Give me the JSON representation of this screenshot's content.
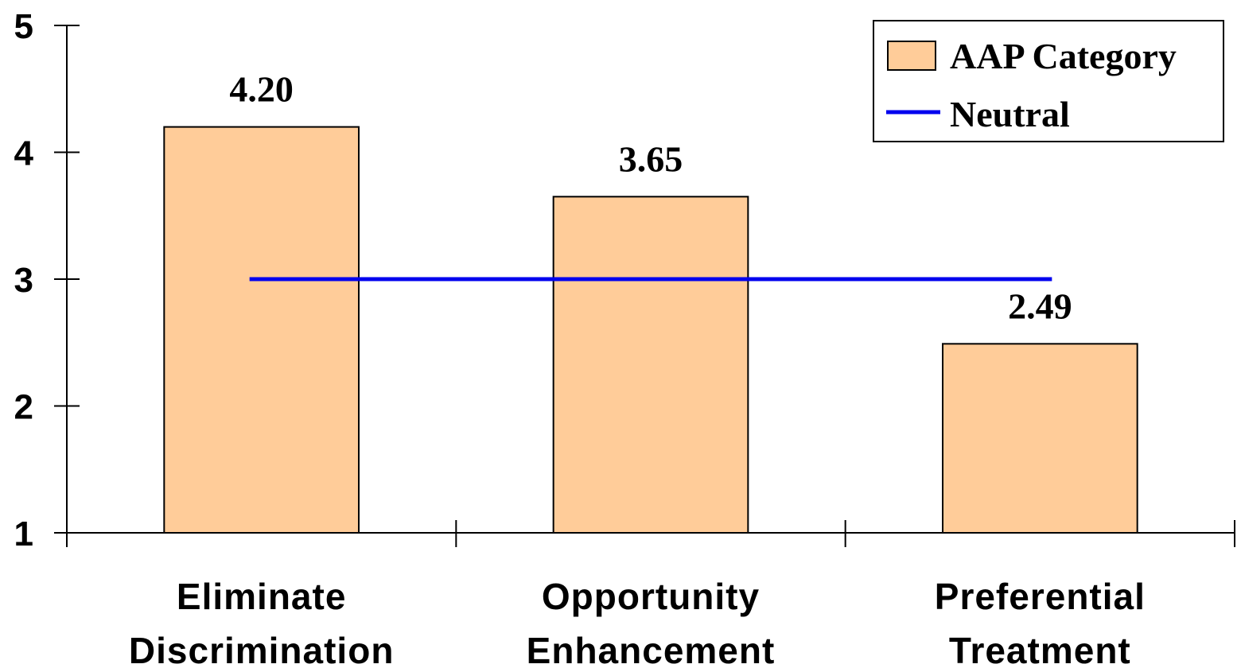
{
  "chart_data": {
    "type": "bar",
    "categories": [
      [
        "Eliminate",
        "Discrimination"
      ],
      [
        "Opportunity",
        "Enhancement"
      ],
      [
        "Preferential",
        "Treatment"
      ]
    ],
    "series": [
      {
        "name": "AAP Category",
        "values": [
          4.2,
          3.65,
          2.49
        ],
        "value_labels": [
          "4.20",
          "3.65",
          "2.49"
        ],
        "color": "#FFCC99"
      }
    ],
    "reference_line": {
      "name": "Neutral",
      "value": 3,
      "color": "#0000EE"
    },
    "ylim": [
      1,
      5
    ],
    "yticks": [
      "1",
      "2",
      "3",
      "4",
      "5"
    ],
    "xlabel": "",
    "ylabel": "",
    "grid": false,
    "legend_position": "top-right"
  }
}
